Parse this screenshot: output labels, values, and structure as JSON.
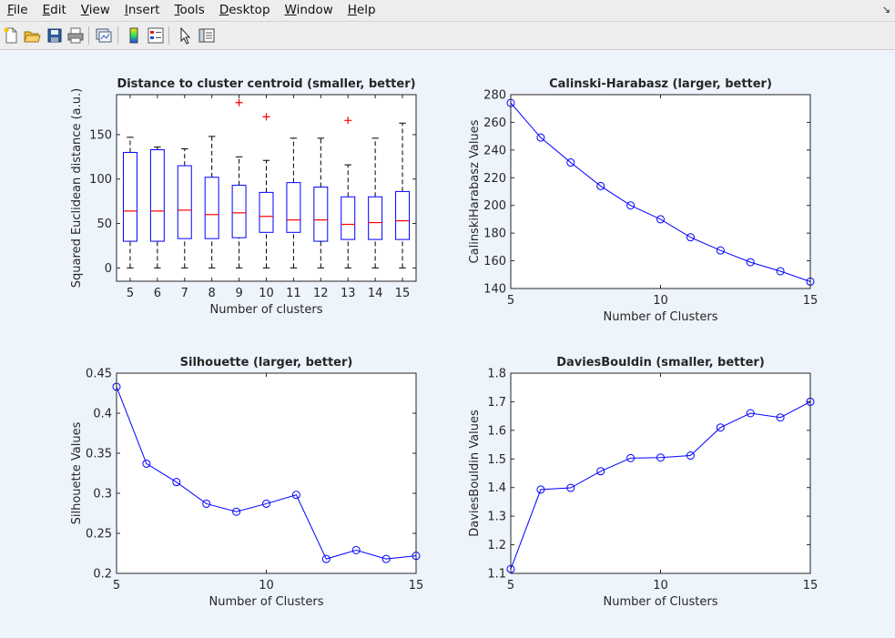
{
  "menu": {
    "items": [
      {
        "label": "File",
        "ul": "F",
        "rest": "ile"
      },
      {
        "label": "Edit",
        "ul": "E",
        "rest": "dit"
      },
      {
        "label": "View",
        "ul": "V",
        "rest": "iew"
      },
      {
        "label": "Insert",
        "ul": "I",
        "rest": "nsert"
      },
      {
        "label": "Tools",
        "ul": "T",
        "rest": "ools"
      },
      {
        "label": "Desktop",
        "ul": "D",
        "rest": "esktop"
      },
      {
        "label": "Window",
        "ul": "W",
        "rest": "indow"
      },
      {
        "label": "Help",
        "ul": "H",
        "rest": "elp"
      }
    ],
    "dock_glyph": "↘"
  },
  "toolbar": {
    "buttons": [
      {
        "name": "new-figure-icon"
      },
      {
        "name": "open-file-icon"
      },
      {
        "name": "save-icon"
      },
      {
        "name": "print-icon"
      },
      {
        "name": "link-plot-icon"
      },
      {
        "name": "insert-colorbar-icon"
      },
      {
        "name": "insert-legend-icon"
      },
      {
        "name": "edit-plot-pointer-icon"
      },
      {
        "name": "property-inspector-icon"
      }
    ]
  },
  "colors": {
    "line": "#0000ff",
    "median": "#ff0000",
    "outlier": "#ff0000",
    "whisker": "#000000"
  },
  "chart_data": [
    {
      "type": "box",
      "title": "Distance to cluster centroid (smaller, better)",
      "xlabel": "Number of clusters",
      "ylabel": "Squared Euclidean distance (a.u.)",
      "categories": [
        5,
        6,
        7,
        8,
        9,
        10,
        11,
        12,
        13,
        14,
        15
      ],
      "boxes": [
        {
          "x": 5,
          "min": 0,
          "q1": 30,
          "median": 64,
          "q3": 130,
          "max": 147,
          "outliers": []
        },
        {
          "x": 6,
          "min": 0,
          "q1": 30,
          "median": 64,
          "q3": 133,
          "max": 136,
          "outliers": []
        },
        {
          "x": 7,
          "min": 0,
          "q1": 33,
          "median": 65,
          "q3": 115,
          "max": 134,
          "outliers": []
        },
        {
          "x": 8,
          "min": 0,
          "q1": 33,
          "median": 60,
          "q3": 102,
          "max": 148,
          "outliers": []
        },
        {
          "x": 9,
          "min": 0,
          "q1": 34,
          "median": 62,
          "q3": 93,
          "max": 125,
          "outliers": [
            186
          ]
        },
        {
          "x": 10,
          "min": 0,
          "q1": 40,
          "median": 58,
          "q3": 85,
          "max": 121,
          "outliers": [
            170
          ]
        },
        {
          "x": 11,
          "min": 0,
          "q1": 40,
          "median": 54,
          "q3": 96,
          "max": 146,
          "outliers": []
        },
        {
          "x": 12,
          "min": 0,
          "q1": 30,
          "median": 54,
          "q3": 91,
          "max": 146,
          "outliers": []
        },
        {
          "x": 13,
          "min": 0,
          "q1": 32,
          "median": 49,
          "q3": 80,
          "max": 116,
          "outliers": [
            166
          ]
        },
        {
          "x": 14,
          "min": 0,
          "q1": 32,
          "median": 51,
          "q3": 80,
          "max": 146,
          "outliers": []
        },
        {
          "x": 15,
          "min": 0,
          "q1": 32,
          "median": 53,
          "q3": 86,
          "max": 163,
          "outliers": []
        }
      ],
      "xlim": [
        4.5,
        15.5
      ],
      "ylim": [
        -15,
        195
      ],
      "yticks": [
        0,
        50,
        100,
        150
      ],
      "xticks": [
        5,
        6,
        7,
        8,
        9,
        10,
        11,
        12,
        13,
        14,
        15
      ]
    },
    {
      "type": "line",
      "title": "Calinski-Harabasz (larger, better)",
      "xlabel": "Number of Clusters",
      "ylabel": "CalinskiHarabasz Values",
      "x": [
        5,
        6,
        7,
        8,
        9,
        10,
        11,
        12,
        13,
        14,
        15
      ],
      "y": [
        274,
        249,
        231,
        214,
        200,
        190,
        177,
        167.5,
        159,
        152.5,
        145
      ],
      "xlim": [
        5,
        15
      ],
      "ylim": [
        140,
        280
      ],
      "xticks": [
        5,
        10,
        15
      ],
      "yticks": [
        140,
        160,
        180,
        200,
        220,
        240,
        260,
        280
      ]
    },
    {
      "type": "line",
      "title": "Silhouette (larger, better)",
      "xlabel": "Number of Clusters",
      "ylabel": "Silhouette Values",
      "x": [
        5,
        6,
        7,
        8,
        9,
        10,
        11,
        12,
        13,
        14,
        15
      ],
      "y": [
        0.433,
        0.337,
        0.314,
        0.287,
        0.277,
        0.287,
        0.298,
        0.218,
        0.229,
        0.218,
        0.222
      ],
      "xlim": [
        5,
        15
      ],
      "ylim": [
        0.2,
        0.45
      ],
      "xticks": [
        5,
        10,
        15
      ],
      "yticks": [
        0.2,
        0.25,
        0.3,
        0.35,
        0.4,
        0.45
      ],
      "yticklabels": [
        "0.2",
        "0.25",
        "0.3",
        "0.35",
        "0.4",
        "0.45"
      ]
    },
    {
      "type": "line",
      "title": "DaviesBouldin (smaller, better)",
      "xlabel": "Number of Clusters",
      "ylabel": "DaviesBouldin Values",
      "x": [
        5,
        6,
        7,
        8,
        9,
        10,
        11,
        12,
        13,
        14,
        15
      ],
      "y": [
        1.115,
        1.393,
        1.399,
        1.457,
        1.503,
        1.505,
        1.512,
        1.61,
        1.66,
        1.645,
        1.7
      ],
      "xlim": [
        5,
        15
      ],
      "ylim": [
        1.1,
        1.8
      ],
      "xticks": [
        5,
        10,
        15
      ],
      "yticks": [
        1.1,
        1.2,
        1.3,
        1.4,
        1.5,
        1.6,
        1.7,
        1.8
      ]
    }
  ]
}
